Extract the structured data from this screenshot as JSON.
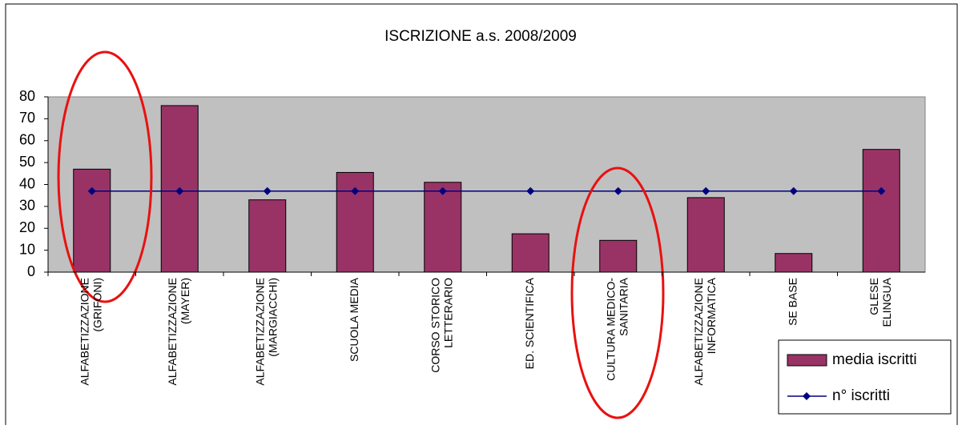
{
  "chart_data": {
    "type": "bar",
    "title": "ISCRIZIONE a.s. 2008/2009",
    "categories": [
      [
        "ALFABETIZZAZIONE",
        "(GRIFONI)"
      ],
      [
        "ALFABETIZZAZIONE",
        "(MAYER)"
      ],
      [
        "ALFABETIZZAZIONE",
        "(MARGIACCHI)"
      ],
      [
        "SCUOLA MEDIA"
      ],
      [
        "CORSO STORICO",
        "LETTERARIO"
      ],
      [
        "ED. SCIENTIFICA"
      ],
      [
        "CULTURA MEDICO-",
        "SANITARIA"
      ],
      [
        "ALFABETIZZAZIONE",
        "INFORMATICA"
      ],
      [
        "SE BASE"
      ],
      [
        "GLESE",
        "ELINGUA"
      ]
    ],
    "series": [
      {
        "name": "media iscritti",
        "type": "bar",
        "color": "#993366",
        "values": [
          47,
          76,
          33,
          45.5,
          41,
          17.5,
          14.5,
          34,
          8.5,
          56
        ]
      },
      {
        "name": "n° iscritti",
        "type": "line",
        "color": "#000080",
        "values": [
          37,
          37,
          37,
          37,
          37,
          37,
          37,
          37,
          37,
          37
        ]
      }
    ],
    "ylim": [
      0,
      80
    ],
    "yticks": [
      0,
      10,
      20,
      30,
      40,
      50,
      60,
      70,
      80
    ]
  }
}
